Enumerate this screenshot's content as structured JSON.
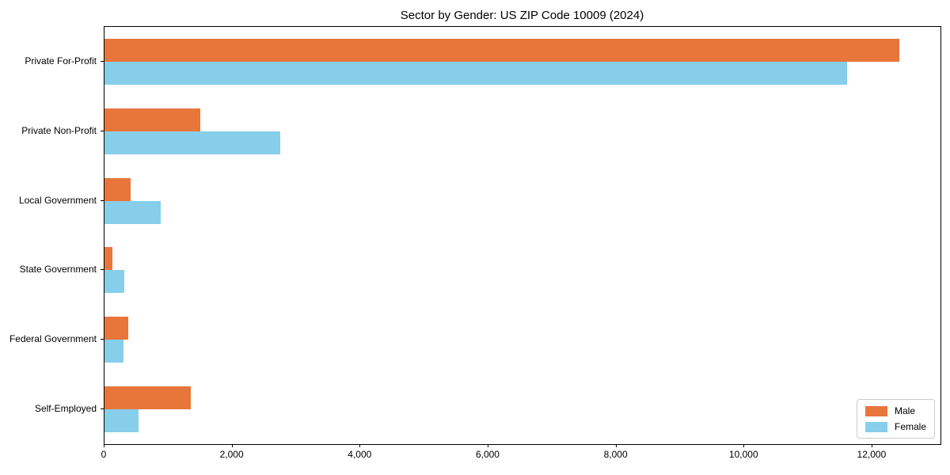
{
  "chart_data": {
    "type": "bar",
    "orientation": "horizontal",
    "title": "Sector by Gender: US ZIP Code 10009 (2024)",
    "categories": [
      "Private For-Profit",
      "Private Non-Profit",
      "Local Government",
      "State Government",
      "Federal Government",
      "Self-Employed"
    ],
    "series": [
      {
        "name": "Male",
        "color": "#E8763B",
        "values": [
          12420,
          1500,
          410,
          125,
          370,
          1350
        ]
      },
      {
        "name": "Female",
        "color": "#87CEEB",
        "values": [
          11600,
          2750,
          875,
          305,
          300,
          535
        ]
      }
    ],
    "xlim": [
      0,
      13065
    ],
    "xticks": {
      "values": [
        0,
        2000,
        4000,
        6000,
        8000,
        10000,
        12000
      ],
      "labels": [
        "0",
        "2,000",
        "4,000",
        "6,000",
        "8,000",
        "10,000",
        "12,000"
      ]
    },
    "legend": {
      "position": "lower right",
      "entries": [
        "Male",
        "Female"
      ]
    },
    "grid": false,
    "background_color": "#ffffff",
    "spine_color": "#000000"
  }
}
